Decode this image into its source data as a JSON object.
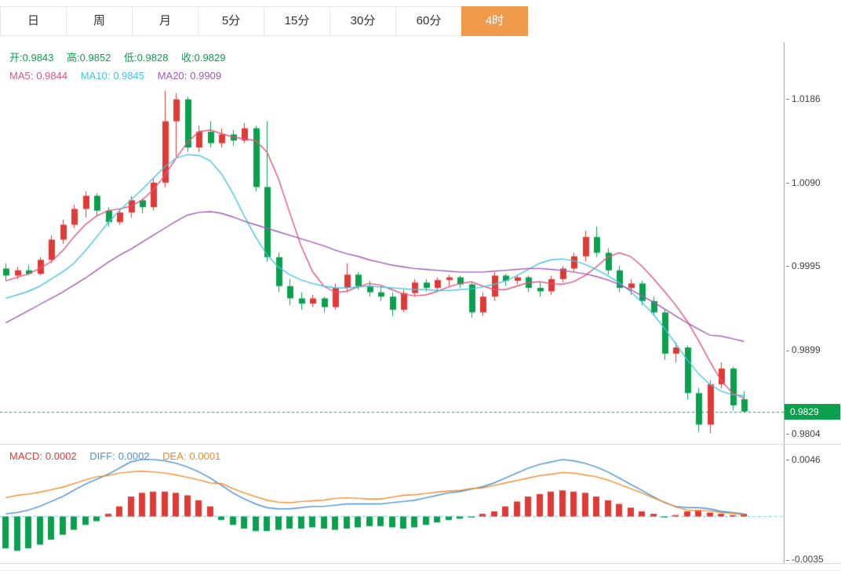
{
  "tabs": {
    "items": [
      {
        "label": "日",
        "active": false
      },
      {
        "label": "周",
        "active": false
      },
      {
        "label": "月",
        "active": false
      },
      {
        "label": "5分",
        "active": false
      },
      {
        "label": "15分",
        "active": false
      },
      {
        "label": "30分",
        "active": false
      },
      {
        "label": "60分",
        "active": false
      },
      {
        "label": "4时",
        "active": true
      }
    ]
  },
  "colors": {
    "up": "#e03a36",
    "down": "#0aa04e",
    "ma5": "#e0557e",
    "ma10": "#44c4e0",
    "ma20": "#a05ab4",
    "diff": "#4a90d9",
    "dea": "#ef8c2a",
    "zero_line": "#7ec8e3",
    "active_tab_bg": "#f09a4c",
    "price_tag_bg": "#0aa04e"
  },
  "main_chart": {
    "legend_ohlc": [
      {
        "label": "开:",
        "value": "0.9843"
      },
      {
        "label": "高:",
        "value": "0.9852"
      },
      {
        "label": "低:",
        "value": "0.9828"
      },
      {
        "label": "收:",
        "value": "0.9829"
      }
    ],
    "legend_ma": [
      {
        "label": "MA5:",
        "value": "0.9844"
      },
      {
        "label": "MA10:",
        "value": "0.9845"
      },
      {
        "label": "MA20:",
        "value": "0.9909"
      }
    ],
    "y_axis_labels": [
      "1.0186",
      "1.0090",
      "0.9995",
      "0.9899",
      "0.9804"
    ],
    "current_price_tag": "0.9829"
  },
  "macd_panel": {
    "legend": [
      {
        "label": "MACD:",
        "value": "0.0002"
      },
      {
        "label": "DIFF:",
        "value": "0.0002"
      },
      {
        "label": "DEA:",
        "value": "0.0001"
      }
    ],
    "y_axis_labels": [
      "0.0046",
      "-0.0035"
    ]
  },
  "chart_data": [
    {
      "type": "candlestick",
      "ylim": [
        0.9792,
        1.025
      ],
      "current_price": 0.9829,
      "candles": [
        [
          0.9992,
          0.9998,
          0.9978,
          0.9984
        ],
        [
          0.9984,
          0.9994,
          0.998,
          0.999
        ],
        [
          0.999,
          0.9996,
          0.9984,
          0.9986
        ],
        [
          0.9986,
          1.0005,
          0.9984,
          1.0002
        ],
        [
          1.0002,
          1.003,
          0.9998,
          1.0025
        ],
        [
          1.0025,
          1.0048,
          1.002,
          1.0042
        ],
        [
          1.0042,
          1.0065,
          1.0038,
          1.006
        ],
        [
          1.006,
          1.008,
          1.005,
          1.0075
        ],
        [
          1.0075,
          1.0078,
          1.0052,
          1.0058
        ],
        [
          1.0058,
          1.0062,
          1.004,
          1.0045
        ],
        [
          1.0045,
          1.006,
          1.0042,
          1.0056
        ],
        [
          1.0056,
          1.0075,
          1.005,
          1.007
        ],
        [
          1.007,
          1.0072,
          1.0055,
          1.0062
        ],
        [
          1.0062,
          1.0095,
          1.0058,
          1.009
        ],
        [
          1.009,
          1.0195,
          1.0085,
          1.016
        ],
        [
          1.016,
          1.0192,
          1.012,
          1.0185
        ],
        [
          1.0185,
          1.0188,
          1.0125,
          1.013
        ],
        [
          1.013,
          1.0155,
          1.0125,
          1.0148
        ],
        [
          1.0148,
          1.016,
          1.013,
          1.0135
        ],
        [
          1.0135,
          1.0152,
          1.013,
          1.0145
        ],
        [
          1.0145,
          1.015,
          1.0132,
          1.0138
        ],
        [
          1.0138,
          1.0158,
          1.0135,
          1.0152
        ],
        [
          1.0152,
          1.0155,
          1.008,
          1.0085
        ],
        [
          1.0085,
          1.016,
          1.0,
          1.0005
        ],
        [
          1.0005,
          1.001,
          0.9965,
          0.9972
        ],
        [
          0.9972,
          0.998,
          0.995,
          0.9958
        ],
        [
          0.9958,
          0.9965,
          0.9945,
          0.9952
        ],
        [
          0.9952,
          0.9962,
          0.9948,
          0.9958
        ],
        [
          0.9958,
          0.996,
          0.9942,
          0.9948
        ],
        [
          0.9948,
          0.9975,
          0.9945,
          0.997
        ],
        [
          0.997,
          0.9998,
          0.9965,
          0.9985
        ],
        [
          0.9985,
          0.9988,
          0.9968,
          0.9972
        ],
        [
          0.9972,
          0.9978,
          0.996,
          0.9965
        ],
        [
          0.9965,
          0.9972,
          0.9955,
          0.996
        ],
        [
          0.996,
          0.9965,
          0.9938,
          0.9945
        ],
        [
          0.9945,
          0.9968,
          0.9942,
          0.9964
        ],
        [
          0.9964,
          0.998,
          0.996,
          0.9976
        ],
        [
          0.9976,
          0.998,
          0.9966,
          0.997
        ],
        [
          0.997,
          0.9982,
          0.9966,
          0.9979
        ],
        [
          0.9979,
          0.9985,
          0.9972,
          0.9982
        ],
        [
          0.9982,
          0.9984,
          0.997,
          0.9974
        ],
        [
          0.9974,
          0.9976,
          0.9936,
          0.9942
        ],
        [
          0.9942,
          0.9965,
          0.9938,
          0.996
        ],
        [
          0.996,
          0.9988,
          0.9955,
          0.9984
        ],
        [
          0.9984,
          0.9986,
          0.9972,
          0.9978
        ],
        [
          0.9978,
          0.9985,
          0.9974,
          0.9982
        ],
        [
          0.9982,
          0.9984,
          0.9965,
          0.997
        ],
        [
          0.997,
          0.9976,
          0.996,
          0.9966
        ],
        [
          0.9966,
          0.9984,
          0.9962,
          0.998
        ],
        [
          0.998,
          0.9995,
          0.9976,
          0.9992
        ],
        [
          0.9992,
          1.001,
          0.9988,
          1.0006
        ],
        [
          1.0006,
          1.0035,
          1.0,
          1.0028
        ],
        [
          1.0028,
          1.004,
          1.0005,
          1.001
        ],
        [
          1.001,
          1.0015,
          0.9985,
          0.999
        ],
        [
          0.999,
          0.9995,
          0.9965,
          0.997
        ],
        [
          0.997,
          0.998,
          0.9962,
          0.9975
        ],
        [
          0.9975,
          0.9978,
          0.995,
          0.9955
        ],
        [
          0.9955,
          0.996,
          0.9938,
          0.9942
        ],
        [
          0.9942,
          0.9945,
          0.9888,
          0.9895
        ],
        [
          0.9895,
          0.9908,
          0.9885,
          0.9902
        ],
        [
          0.9902,
          0.9904,
          0.9843,
          0.985
        ],
        [
          0.985,
          0.9856,
          0.9806,
          0.9814
        ],
        [
          0.9814,
          0.9865,
          0.9804,
          0.986
        ],
        [
          0.986,
          0.9885,
          0.9855,
          0.9878
        ],
        [
          0.9878,
          0.988,
          0.983,
          0.9836
        ],
        [
          0.9843,
          0.9852,
          0.9828,
          0.9829
        ]
      ],
      "series": [
        {
          "name": "MA5",
          "color_key": "ma5",
          "values": [
            0.9978,
            0.9982,
            0.9986,
            0.9992,
            1.0,
            1.0012,
            1.0028,
            1.0042,
            1.0052,
            1.0058,
            1.006,
            1.0063,
            1.007,
            1.0082,
            1.0098,
            1.0118,
            1.0136,
            1.0148,
            1.015,
            1.0146,
            1.0142,
            1.014,
            1.0138,
            1.0125,
            1.0095,
            1.0056,
            1.0018,
            0.9989,
            0.9972,
            0.9965,
            0.9966,
            0.9971,
            0.9975,
            0.9973,
            0.9968,
            0.9963,
            0.9961,
            0.9962,
            0.9966,
            0.9971,
            0.9975,
            0.9977,
            0.9972,
            0.9968,
            0.9968,
            0.9972,
            0.9976,
            0.9977,
            0.9975,
            0.9974,
            0.9977,
            0.9984,
            0.9994,
            1.0005,
            1.001,
            1.0006,
            0.9995,
            0.9981,
            0.9966,
            0.995,
            0.9932,
            0.991,
            0.9886,
            0.9864,
            0.985,
            0.9844
          ]
        },
        {
          "name": "MA10",
          "color_key": "ma10",
          "values": [
            0.9958,
            0.9962,
            0.9966,
            0.9972,
            0.998,
            0.9988,
            0.9998,
            1.0012,
            1.0028,
            1.0044,
            1.0058,
            1.007,
            1.0082,
            1.0095,
            1.0108,
            1.0118,
            1.0122,
            1.0121,
            1.0115,
            1.01,
            1.0078,
            1.0052,
            1.0028,
            1.0008,
            0.9994,
            0.9985,
            0.9979,
            0.9975,
            0.9972,
            0.997,
            0.997,
            0.9971,
            0.9972,
            0.9971,
            0.997,
            0.9969,
            0.9968,
            0.9968,
            0.9967,
            0.9967,
            0.9968,
            0.9969,
            0.9971,
            0.9974,
            0.9978,
            0.9984,
            0.9991,
            0.9998,
            1.0002,
            1.0003,
            1.0001,
            0.9997,
            0.9991,
            0.9984,
            0.9976,
            0.9966,
            0.9954,
            0.994,
            0.9924,
            0.9906,
            0.9888,
            0.9872,
            0.986,
            0.9852,
            0.9848,
            0.9847
          ]
        },
        {
          "name": "MA20",
          "color_key": "ma20",
          "values": [
            0.993,
            0.9937,
            0.9944,
            0.9951,
            0.9958,
            0.9965,
            0.9973,
            0.9981,
            0.999,
            0.9999,
            1.0007,
            1.0014,
            1.0022,
            1.003,
            1.0038,
            1.0046,
            1.0053,
            1.0056,
            1.0057,
            1.0055,
            1.0051,
            1.0046,
            1.0042,
            1.0038,
            1.0034,
            1.003,
            1.0026,
            1.0022,
            1.0018,
            1.0013,
            1.0009,
            1.0006,
            1.0002,
            0.9999,
            0.9996,
            0.9994,
            0.9992,
            0.9991,
            0.999,
            0.9989,
            0.9988,
            0.9988,
            0.9988,
            0.9989,
            0.999,
            0.9991,
            0.9992,
            0.9992,
            0.9991,
            0.999,
            0.9988,
            0.9986,
            0.9983,
            0.9979,
            0.9974,
            0.9968,
            0.9961,
            0.9954,
            0.9946,
            0.9938,
            0.993,
            0.9923,
            0.9916,
            0.9915,
            0.9912,
            0.9909
          ]
        }
      ]
    },
    {
      "type": "bar",
      "name": "MACD",
      "ylim": [
        -0.0038,
        0.0058
      ],
      "histogram": [
        -0.0026,
        -0.0028,
        -0.0026,
        -0.0023,
        -0.0019,
        -0.0015,
        -0.0011,
        -0.0007,
        -0.0004,
        0.0002,
        0.0008,
        0.0016,
        0.0019,
        0.002,
        0.002,
        0.0019,
        0.0017,
        0.0013,
        0.0008,
        -0.0003,
        -0.0007,
        -0.001,
        -0.0012,
        -0.0012,
        -0.0011,
        -0.001,
        -0.001,
        -0.0009,
        -0.001,
        -0.0011,
        -0.001,
        -0.0009,
        -0.0008,
        -0.0008,
        -0.0009,
        -0.001,
        -0.0009,
        -0.0007,
        -0.0005,
        -0.0003,
        -0.0002,
        -0.0001,
        0.0002,
        0.0004,
        0.0008,
        0.0012,
        0.0016,
        0.0018,
        0.002,
        0.0021,
        0.002,
        0.0019,
        0.0016,
        0.0013,
        0.001,
        0.0007,
        0.0004,
        0.0002,
        -0.0001,
        0.0001,
        0.0004,
        0.0005,
        0.0003,
        0.0002,
        0.0001,
        0.0002
      ],
      "series": [
        {
          "name": "DIFF",
          "color_key": "diff",
          "values": [
            0.0002,
            0.0003,
            0.0005,
            0.0008,
            0.0012,
            0.0016,
            0.0021,
            0.0026,
            0.003,
            0.0034,
            0.0039,
            0.0044,
            0.0046,
            0.0046,
            0.0045,
            0.0043,
            0.004,
            0.0036,
            0.0031,
            0.0025,
            0.0019,
            0.0014,
            0.001,
            0.0007,
            0.0006,
            0.0006,
            0.0007,
            0.0008,
            0.0008,
            0.0009,
            0.001,
            0.001,
            0.001,
            0.001,
            0.0011,
            0.0012,
            0.0013,
            0.0015,
            0.0017,
            0.0019,
            0.002,
            0.0022,
            0.0024,
            0.0027,
            0.0031,
            0.0035,
            0.0039,
            0.0042,
            0.0044,
            0.0046,
            0.0045,
            0.0043,
            0.004,
            0.0036,
            0.0031,
            0.0026,
            0.0021,
            0.0016,
            0.0011,
            0.0008,
            0.0007,
            0.0007,
            0.0006,
            0.0004,
            0.0003,
            0.0002
          ]
        },
        {
          "name": "DEA",
          "color_key": "dea",
          "values": [
            0.0015,
            0.0017,
            0.0018,
            0.00195,
            0.00215,
            0.00235,
            0.00265,
            0.00295,
            0.0032,
            0.0033,
            0.0035,
            0.0036,
            0.00365,
            0.0036,
            0.0035,
            0.00335,
            0.00315,
            0.00295,
            0.0027,
            0.00265,
            0.00225,
            0.0019,
            0.0016,
            0.0013,
            0.00115,
            0.0011,
            0.0012,
            0.00125,
            0.0013,
            0.00145,
            0.0015,
            0.00145,
            0.0014,
            0.0014,
            0.00155,
            0.0017,
            0.00175,
            0.00185,
            0.00195,
            0.00205,
            0.0021,
            0.00225,
            0.0023,
            0.0025,
            0.0027,
            0.0029,
            0.0031,
            0.0033,
            0.0034,
            0.00355,
            0.0035,
            0.00335,
            0.0032,
            0.00295,
            0.0026,
            0.00225,
            0.0019,
            0.0015,
            0.00115,
            0.00075,
            0.0005,
            0.00045,
            0.00045,
            0.0003,
            0.00025,
            0.0001
          ]
        }
      ]
    }
  ]
}
